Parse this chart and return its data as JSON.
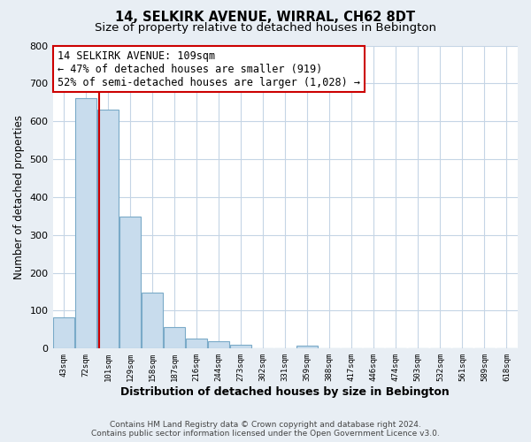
{
  "title": "14, SELKIRK AVENUE, WIRRAL, CH62 8DT",
  "subtitle": "Size of property relative to detached houses in Bebington",
  "xlabel": "Distribution of detached houses by size in Bebington",
  "ylabel": "Number of detached properties",
  "categories": [
    "43sqm",
    "72sqm",
    "101sqm",
    "129sqm",
    "158sqm",
    "187sqm",
    "216sqm",
    "244sqm",
    "273sqm",
    "302sqm",
    "331sqm",
    "359sqm",
    "388sqm",
    "417sqm",
    "446sqm",
    "474sqm",
    "503sqm",
    "532sqm",
    "561sqm",
    "589sqm",
    "618sqm"
  ],
  "values": [
    83,
    662,
    630,
    349,
    148,
    57,
    27,
    20,
    10,
    0,
    0,
    8,
    0,
    0,
    0,
    0,
    0,
    0,
    0,
    0,
    0
  ],
  "bar_fill": "#c8dced",
  "bar_edge": "#7aaac8",
  "property_line_x": 1.6,
  "property_line_color": "#cc0000",
  "annotation_title": "14 SELKIRK AVENUE: 109sqm",
  "annotation_line1": "← 47% of detached houses are smaller (919)",
  "annotation_line2": "52% of semi-detached houses are larger (1,028) →",
  "annotation_box_color": "#ffffff",
  "annotation_box_edge": "#cc0000",
  "ylim": [
    0,
    800
  ],
  "yticks": [
    0,
    100,
    200,
    300,
    400,
    500,
    600,
    700,
    800
  ],
  "footer1": "Contains HM Land Registry data © Crown copyright and database right 2024.",
  "footer2": "Contains public sector information licensed under the Open Government Licence v3.0.",
  "background_color": "#e8eef4",
  "plot_bg_color": "#ffffff",
  "grid_color": "#c5d5e5",
  "title_fontsize": 10.5,
  "subtitle_fontsize": 9.5,
  "xlabel_fontsize": 9,
  "ylabel_fontsize": 8.5,
  "ann_fontsize": 8.5
}
